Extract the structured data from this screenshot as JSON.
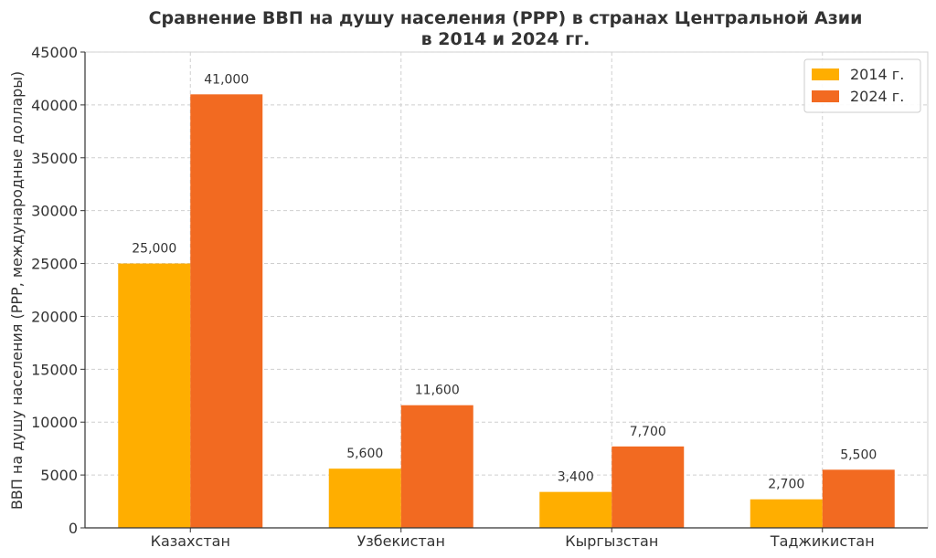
{
  "chart_data": {
    "type": "bar",
    "title": "Сравнение ВВП на душу населения (PPP) в странах Центральной Азии",
    "subtitle": "в 2014 и 2024 гг.",
    "xlabel": "",
    "ylabel": "ВВП на душу населения (PPP, международные доллары)",
    "categories": [
      "Казахстан",
      "Узбекистан",
      "Кыргызстан",
      "Таджикистан"
    ],
    "series": [
      {
        "name": "2014 г.",
        "color": "#FFAE00",
        "values": [
          25000,
          5600,
          3400,
          2700
        ],
        "labels": [
          "25,000",
          "5,600",
          "3,400",
          "2,700"
        ]
      },
      {
        "name": "2024 г.",
        "color": "#F26A21",
        "values": [
          41000,
          11600,
          7700,
          5500
        ],
        "labels": [
          "41,000",
          "11,600",
          "7,700",
          "5,500"
        ]
      }
    ],
    "ylim": [
      0,
      45000
    ],
    "yticks": [
      "0",
      "5000",
      "10000",
      "15000",
      "20000",
      "25000",
      "30000",
      "35000",
      "40000",
      "45000"
    ],
    "grid": true,
    "legend_position": "top-right"
  }
}
